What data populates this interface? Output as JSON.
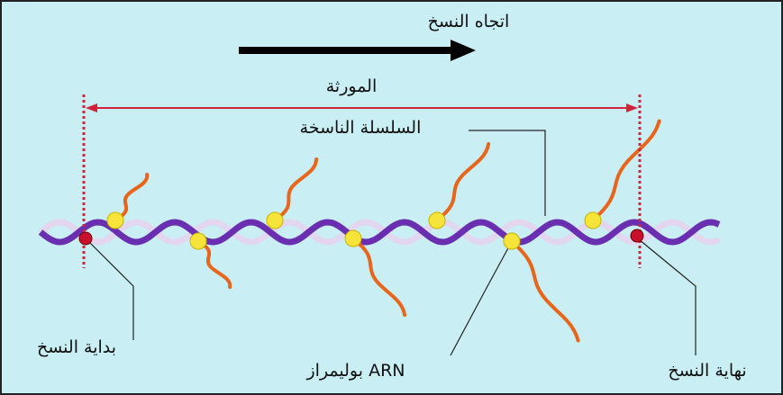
{
  "labels": {
    "direction": "اتجاه النسخ",
    "gene": "المورثة",
    "template_strand": "السلسلة الناسخة",
    "start": "بداية النسخ",
    "polymerase": "بوليمراز ARN",
    "end": "نهاية النسخ"
  }
}
